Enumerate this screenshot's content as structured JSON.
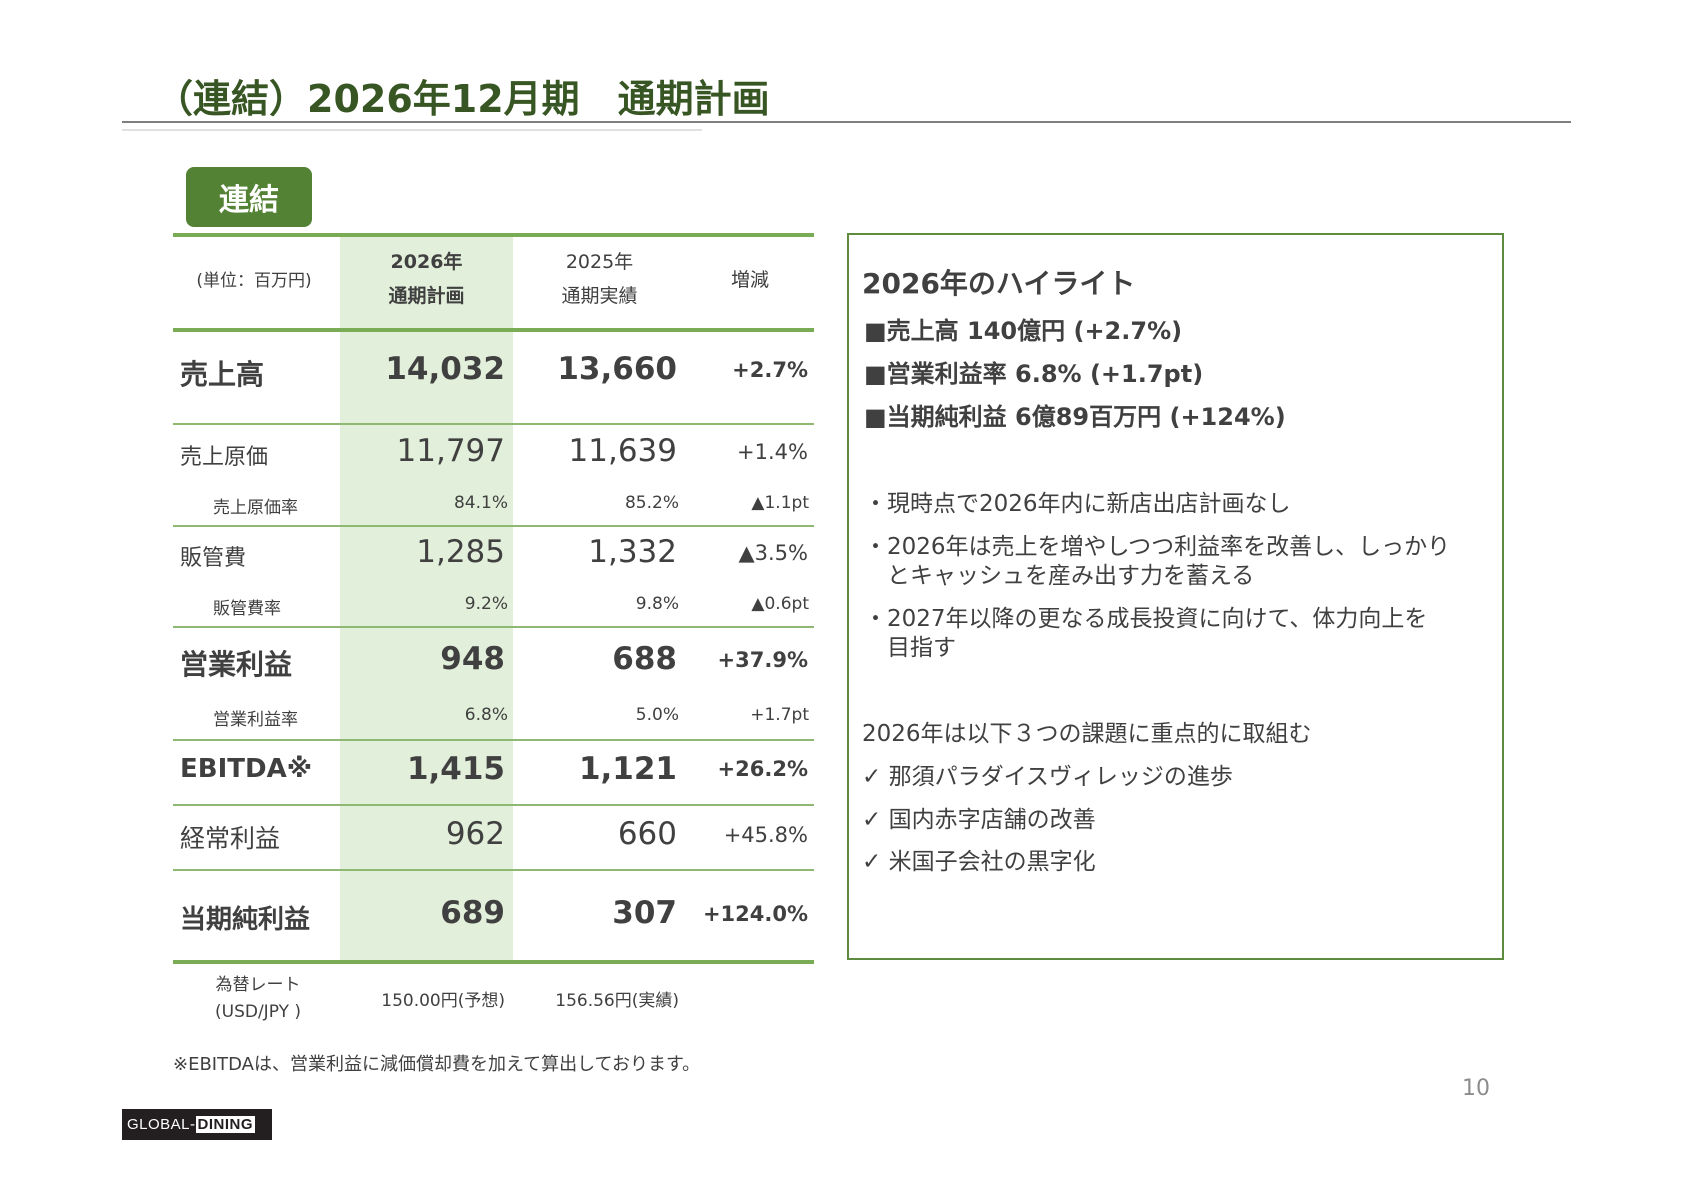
{
  "title": "（連結）2026年12月期　通期計画",
  "badge": "連結",
  "table": {
    "unit": "(単位：百万円)",
    "col_2026_line1": "2026年",
    "col_2026_line2": "通期計画",
    "col_2025_line1": "2025年",
    "col_2025_line2": "通期実績",
    "col_change": "増減",
    "rows": [
      {
        "label": "売上高",
        "plan": "14,032",
        "actual": "13,660",
        "change": "+2.7%"
      },
      {
        "label": "売上原価",
        "plan": "11,797",
        "actual": "11,639",
        "change": "+1.4%"
      },
      {
        "label": "売上原価率",
        "plan": "84.1%",
        "actual": "85.2%",
        "change": "▲1.1pt"
      },
      {
        "label": "販管費",
        "plan": "1,285",
        "actual": "1,332",
        "change": "▲3.5%"
      },
      {
        "label": "販管費率",
        "plan": "9.2%",
        "actual": "9.8%",
        "change": "▲0.6pt"
      },
      {
        "label": "営業利益",
        "plan": "948",
        "actual": "688",
        "change": "+37.9%"
      },
      {
        "label": "営業利益率",
        "plan": "6.8%",
        "actual": "5.0%",
        "change": "+1.7pt"
      },
      {
        "label": "EBITDA※",
        "plan": "1,415",
        "actual": "1,121",
        "change": "+26.2%"
      },
      {
        "label": "経常利益",
        "plan": "962",
        "actual": "660",
        "change": "+45.8%"
      },
      {
        "label": "当期純利益",
        "plan": "689",
        "actual": "307",
        "change": "+124.0%"
      }
    ],
    "fx_label1": "為替レート",
    "fx_label2": "(USD/JPY )",
    "fx_plan": "150.00円(予想)",
    "fx_actual": "156.56円(実績)"
  },
  "footnote": "※EBITDAは、営業利益に減価償却費を加えて算出しております。",
  "highlights": {
    "heading": "2026年のハイライト",
    "key_points": [
      "■売上高 140億円 (+2.7%)",
      "■営業利益率 6.8% (+1.7pt)",
      "■当期純利益 6億89百万円 (+124%)"
    ],
    "bullets": [
      {
        "line1": "・現時点で2026年内に新店出店計画なし"
      },
      {
        "line1": "・2026年は売上を増やしつつ利益率を改善し、しっかり",
        "line2": "とキャッシュを産み出す力を蓄える"
      },
      {
        "line1": "・2027年以降の更なる成長投資に向けて、体力向上を",
        "line2": "目指す"
      }
    ],
    "focus_intro": "2026年は以下３つの課題に重点的に取組む",
    "focus_items": [
      "✓ 那須パラダイスヴィレッジの進歩",
      "✓ 国内赤字店舗の改善",
      "✓ 米国子会社の黒字化"
    ]
  },
  "logo_text": "GLOBAL-DINING",
  "page_number": "10"
}
